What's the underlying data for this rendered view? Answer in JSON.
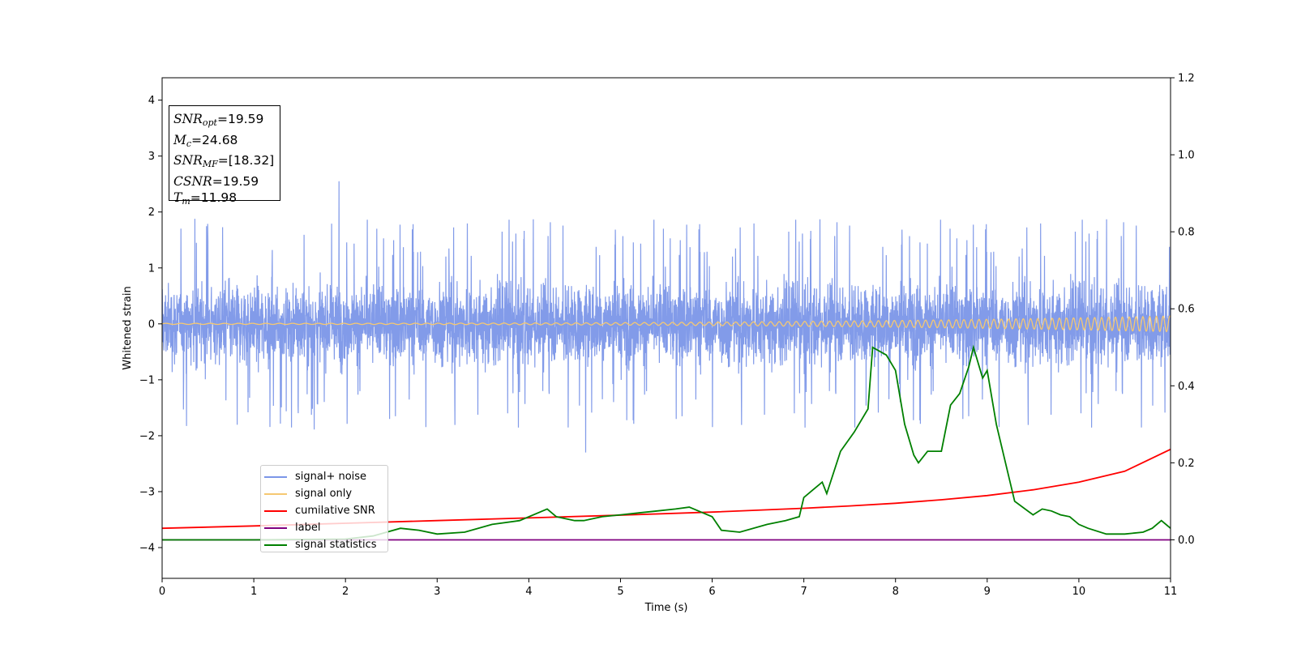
{
  "chart_data": {
    "type": "line",
    "title": "",
    "xlabel": "Time (s)",
    "ylabel": "Whitened strain",
    "xlim": [
      0,
      11
    ],
    "ylim_left": [
      -4.55,
      4.4
    ],
    "ylim_right": [
      -0.1,
      1.2
    ],
    "x_ticks": [
      "0",
      "1",
      "2",
      "3",
      "4",
      "5",
      "6",
      "7",
      "8",
      "9",
      "10",
      "11"
    ],
    "y_ticks_left": [
      "4",
      "3",
      "2",
      "1",
      "0",
      "−1",
      "−2",
      "−3",
      "−4"
    ],
    "y_ticks_right": [
      "1.2",
      "1.0",
      "0.8",
      "0.6",
      "0.4",
      "0.2",
      "0.0"
    ],
    "legend_position": "lower-left",
    "annotation": {
      "snr_opt": "19.59",
      "mc": "24.68",
      "snr_mf": "[18.32]",
      "csnr": "19.59",
      "tm": "11.98"
    },
    "series": [
      {
        "name": "signal+ noise",
        "axis": "left",
        "color": "#7b96e8",
        "kind": "noise",
        "band_range": [
          -1.1,
          1.1
        ],
        "typical_extremes": [
          -2.1,
          2.5
        ],
        "max_peak": {
          "x": 1.93,
          "y": 2.55
        },
        "min_peak": {
          "x": 4.62,
          "y": -2.45
        }
      },
      {
        "name": "signal only",
        "axis": "left",
        "color": "#f5c872",
        "kind": "chirp",
        "amplitude_start": 0.01,
        "amplitude_end": 0.14
      },
      {
        "name": "cumilative SNR",
        "axis": "right",
        "color": "#ff0000",
        "x": [
          0,
          1,
          2,
          3,
          4,
          5,
          6,
          7,
          7.5,
          8,
          8.5,
          9,
          9.5,
          10,
          10.5,
          11
        ],
        "y": [
          0.03,
          0.036,
          0.043,
          0.05,
          0.057,
          0.064,
          0.072,
          0.082,
          0.088,
          0.095,
          0.104,
          0.115,
          0.13,
          0.15,
          0.178,
          0.235
        ]
      },
      {
        "name": "label",
        "axis": "right",
        "color": "#800080",
        "x": [
          0,
          11
        ],
        "y": [
          0.0,
          0.0
        ]
      },
      {
        "name": "signal statistics",
        "axis": "right",
        "color": "#008000",
        "x": [
          0,
          0.5,
          1,
          1.5,
          2,
          2.3,
          2.6,
          2.8,
          3.0,
          3.3,
          3.6,
          3.9,
          4.1,
          4.2,
          4.3,
          4.5,
          4.6,
          4.8,
          5.0,
          5.2,
          5.4,
          5.6,
          5.75,
          5.9,
          6.0,
          6.1,
          6.3,
          6.6,
          6.8,
          6.95,
          7.0,
          7.1,
          7.2,
          7.25,
          7.4,
          7.55,
          7.7,
          7.75,
          7.9,
          8.0,
          8.1,
          8.2,
          8.25,
          8.35,
          8.5,
          8.6,
          8.7,
          8.8,
          8.85,
          8.95,
          9.0,
          9.1,
          9.2,
          9.3,
          9.5,
          9.6,
          9.7,
          9.8,
          9.9,
          10.0,
          10.1,
          10.3,
          10.5,
          10.7,
          10.8,
          10.9,
          11.0
        ],
        "y": [
          0.0,
          0.0,
          0.0,
          0.001,
          0.002,
          0.01,
          0.03,
          0.025,
          0.015,
          0.02,
          0.04,
          0.05,
          0.07,
          0.08,
          0.06,
          0.05,
          0.05,
          0.06,
          0.065,
          0.07,
          0.075,
          0.08,
          0.085,
          0.07,
          0.06,
          0.025,
          0.02,
          0.04,
          0.05,
          0.06,
          0.11,
          0.13,
          0.15,
          0.12,
          0.23,
          0.28,
          0.34,
          0.5,
          0.48,
          0.44,
          0.3,
          0.22,
          0.2,
          0.23,
          0.23,
          0.35,
          0.38,
          0.45,
          0.5,
          0.42,
          0.44,
          0.3,
          0.2,
          0.1,
          0.065,
          0.08,
          0.075,
          0.065,
          0.06,
          0.04,
          0.03,
          0.015,
          0.015,
          0.02,
          0.03,
          0.05,
          0.03
        ]
      }
    ]
  }
}
